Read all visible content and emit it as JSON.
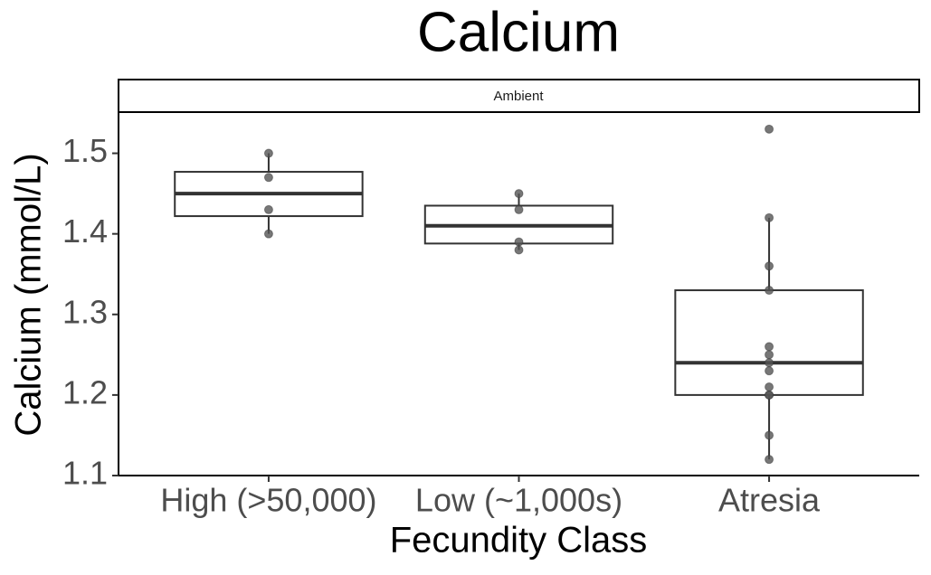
{
  "chart_data": {
    "type": "box",
    "title": "Calcium",
    "panel": "Ambient",
    "x_label": "Fecundity Class",
    "y_label": "Calcium (mmol/L)",
    "categories": [
      "High (>50,000)",
      "Low (~1,000s)",
      "Atresia"
    ],
    "boxes": [
      {
        "whisker_low": 1.4,
        "q1": 1.422,
        "median": 1.45,
        "q3": 1.477,
        "whisker_high": 1.5,
        "points": [
          1.5,
          1.47,
          1.43,
          1.4
        ]
      },
      {
        "whisker_low": 1.38,
        "q1": 1.388,
        "median": 1.41,
        "q3": 1.435,
        "whisker_high": 1.45,
        "points": [
          1.45,
          1.43,
          1.39,
          1.38
        ]
      },
      {
        "whisker_low": 1.12,
        "q1": 1.2,
        "median": 1.24,
        "q3": 1.33,
        "whisker_high": 1.42,
        "points": [
          1.53,
          1.42,
          1.36,
          1.33,
          1.26,
          1.25,
          1.24,
          1.23,
          1.21,
          1.2,
          1.2,
          1.15,
          1.12
        ]
      }
    ],
    "color": "#333333",
    "point_color": "#555555",
    "ylim": [
      1.1,
      1.55
    ],
    "yticks": [
      1.1,
      1.2,
      1.3,
      1.4,
      1.5
    ]
  }
}
